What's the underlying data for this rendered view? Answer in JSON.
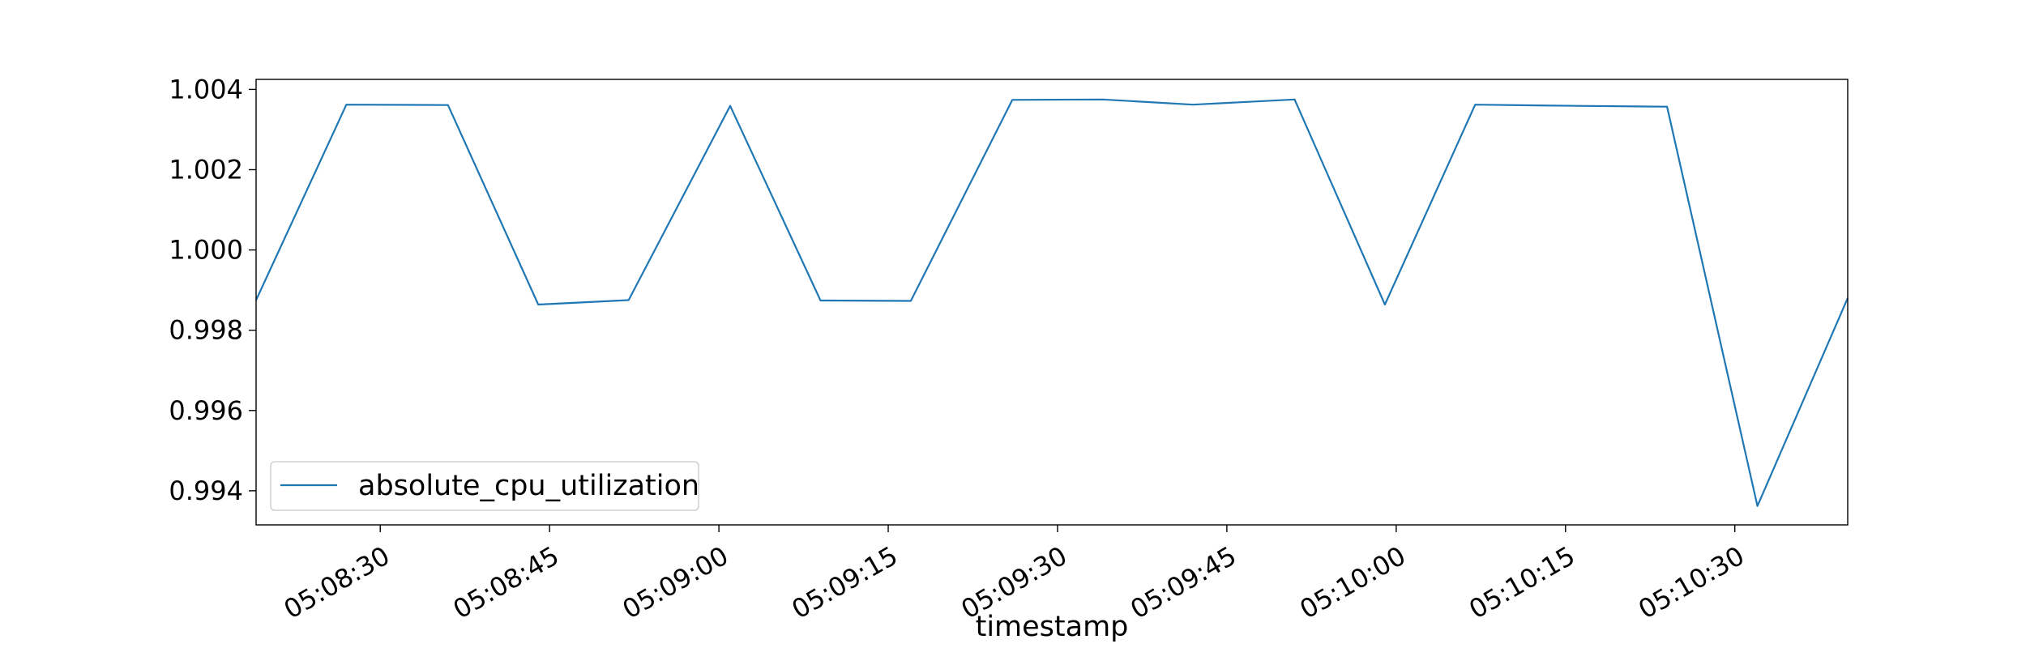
{
  "chart_data": {
    "type": "line",
    "title": "",
    "xlabel": "timestamp",
    "ylabel": "",
    "x_range": [
      "05:08:19",
      "05:10:40"
    ],
    "ylim": [
      0.99315,
      1.00425
    ],
    "x_ticks": [
      "05:08:30",
      "05:08:45",
      "05:09:00",
      "05:09:15",
      "05:09:30",
      "05:09:45",
      "05:10:00",
      "05:10:15",
      "05:10:30"
    ],
    "y_ticks": [
      "0.994",
      "0.996",
      "0.998",
      "1.000",
      "1.002",
      "1.004"
    ],
    "grid": false,
    "legend_position": "lower-left",
    "series": [
      {
        "name": "absolute_cpu_utilization",
        "color": "#1f77b4",
        "x": [
          "05:08:19",
          "05:08:27",
          "05:08:36",
          "05:08:44",
          "05:08:52",
          "05:09:01",
          "05:09:09",
          "05:09:17",
          "05:09:26",
          "05:09:34",
          "05:09:42",
          "05:09:51",
          "05:09:59",
          "05:10:07",
          "05:10:16",
          "05:10:24",
          "05:10:32",
          "05:10:40"
        ],
        "values": [
          0.99875,
          1.00362,
          1.00361,
          0.99864,
          0.99875,
          1.00359,
          0.99874,
          0.99873,
          1.00374,
          1.00375,
          1.00362,
          1.00375,
          0.99864,
          1.00362,
          1.00359,
          1.00357,
          0.99362,
          0.9988
        ]
      }
    ]
  }
}
